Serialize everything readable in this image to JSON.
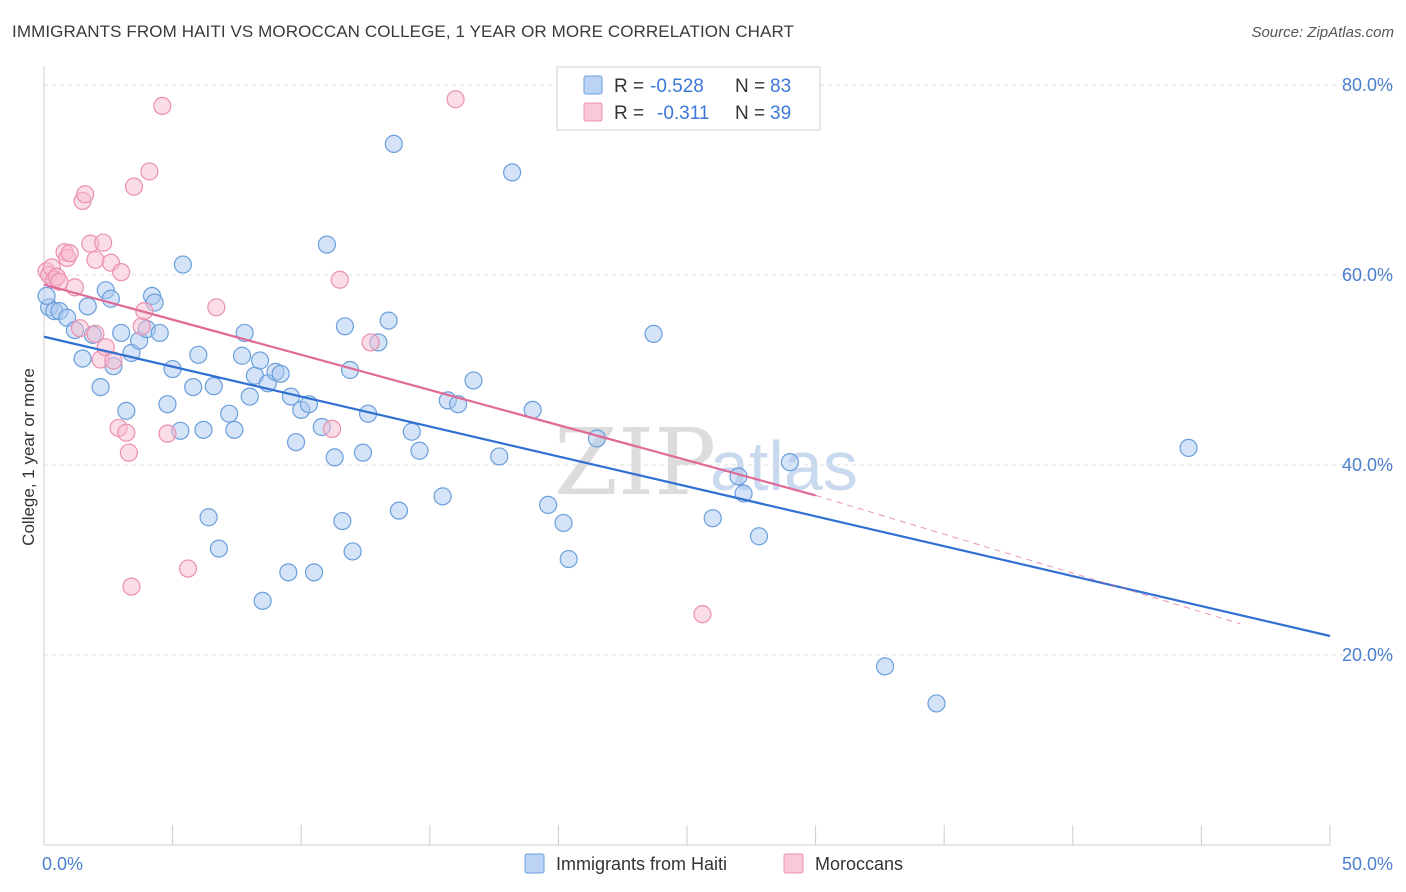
{
  "header": {
    "title": "IMMIGRANTS FROM HAITI VS MOROCCAN COLLEGE, 1 YEAR OR MORE CORRELATION CHART",
    "source": "Source: ZipAtlas.com"
  },
  "legend": {
    "rows": [
      {
        "r_label": "R =",
        "r_value": "-0.528",
        "n_label": "N =",
        "n_value": "83"
      },
      {
        "r_label": "R =",
        "r_value": "-0.311",
        "n_label": "N =",
        "n_value": "39"
      }
    ]
  },
  "watermark": {
    "zip": "ZIP",
    "atlas": "atlas"
  },
  "colors": {
    "haiti_fill": "#a9c8ef",
    "haiti_stroke": "#6a9fdc",
    "haiti_line": "#3070d0",
    "moroccan_fill": "#f7bcd0",
    "moroccan_stroke": "#eb8fb0",
    "moroccan_line": "#e06a96",
    "tick_label": "#4a7fcf",
    "grid": "#dddddd"
  },
  "chart_data": {
    "type": "scatter",
    "title": "IMMIGRANTS FROM HAITI VS MOROCCAN COLLEGE, 1 YEAR OR MORE CORRELATION CHART",
    "xlabel": "",
    "ylabel": "College, 1 year or more",
    "xlim": [
      0,
      50
    ],
    "ylim": [
      0,
      82
    ],
    "x_tick_labels": [
      "0.0%",
      "50.0%"
    ],
    "y_ticks": [
      20,
      40,
      60,
      80
    ],
    "y_tick_labels": [
      "20.0%",
      "40.0%",
      "60.0%",
      "80.0%"
    ],
    "grid": "horizontal dashed",
    "legend_position": "top-center",
    "series": [
      {
        "name": "Immigrants from Haiti",
        "points": [
          [
            0.2,
            56.6
          ],
          [
            0.4,
            56.2
          ],
          [
            0.6,
            56.2
          ],
          [
            0.9,
            55.5
          ],
          [
            1.2,
            54.2
          ],
          [
            1.5,
            51.2
          ],
          [
            1.7,
            56.7
          ],
          [
            1.9,
            53.7
          ],
          [
            2.2,
            48.2
          ],
          [
            2.4,
            58.4
          ],
          [
            2.6,
            57.5
          ],
          [
            2.7,
            50.4
          ],
          [
            3.0,
            53.9
          ],
          [
            3.2,
            45.7
          ],
          [
            3.4,
            51.8
          ],
          [
            3.7,
            53.1
          ],
          [
            4.0,
            54.3
          ],
          [
            4.2,
            57.8
          ],
          [
            4.3,
            57.1
          ],
          [
            4.5,
            53.9
          ],
          [
            4.8,
            46.4
          ],
          [
            5.0,
            50.1
          ],
          [
            5.3,
            43.6
          ],
          [
            5.4,
            61.1
          ],
          [
            5.8,
            48.2
          ],
          [
            6.0,
            51.6
          ],
          [
            6.2,
            43.7
          ],
          [
            6.4,
            34.5
          ],
          [
            6.6,
            48.3
          ],
          [
            6.8,
            31.2
          ],
          [
            7.2,
            45.4
          ],
          [
            7.4,
            43.7
          ],
          [
            7.7,
            51.5
          ],
          [
            7.8,
            53.9
          ],
          [
            8.0,
            47.2
          ],
          [
            8.2,
            49.4
          ],
          [
            8.4,
            51.0
          ],
          [
            8.5,
            25.7
          ],
          [
            8.7,
            48.6
          ],
          [
            9.0,
            49.8
          ],
          [
            9.2,
            49.6
          ],
          [
            9.5,
            28.7
          ],
          [
            9.6,
            47.2
          ],
          [
            9.8,
            42.4
          ],
          [
            10.0,
            45.8
          ],
          [
            10.3,
            46.4
          ],
          [
            10.5,
            28.7
          ],
          [
            10.8,
            44.0
          ],
          [
            11.0,
            63.2
          ],
          [
            11.3,
            40.8
          ],
          [
            11.6,
            34.1
          ],
          [
            11.7,
            54.6
          ],
          [
            11.9,
            50.0
          ],
          [
            12.0,
            30.9
          ],
          [
            12.4,
            41.3
          ],
          [
            12.6,
            45.4
          ],
          [
            13.0,
            52.9
          ],
          [
            13.4,
            55.2
          ],
          [
            13.6,
            73.8
          ],
          [
            13.8,
            35.2
          ],
          [
            14.3,
            43.5
          ],
          [
            14.6,
            41.5
          ],
          [
            15.5,
            36.7
          ],
          [
            15.7,
            46.8
          ],
          [
            16.1,
            46.4
          ],
          [
            16.7,
            48.9
          ],
          [
            17.7,
            40.9
          ],
          [
            18.2,
            70.8
          ],
          [
            19.0,
            45.8
          ],
          [
            19.6,
            35.8
          ],
          [
            20.2,
            33.9
          ],
          [
            20.4,
            30.1
          ],
          [
            21.5,
            42.8
          ],
          [
            23.7,
            53.8
          ],
          [
            26.0,
            34.4
          ],
          [
            27.0,
            38.8
          ],
          [
            27.2,
            37.0
          ],
          [
            27.8,
            32.5
          ],
          [
            29.0,
            40.3
          ],
          [
            32.7,
            18.8
          ],
          [
            34.7,
            14.9
          ],
          [
            44.5,
            41.8
          ],
          [
            0.1,
            57.8
          ]
        ],
        "trend": {
          "x": [
            0,
            50
          ],
          "y": [
            53.5,
            22.0
          ]
        }
      },
      {
        "name": "Moroccans",
        "points": [
          [
            0.1,
            60.4
          ],
          [
            0.2,
            60.0
          ],
          [
            0.3,
            60.8
          ],
          [
            0.4,
            59.5
          ],
          [
            0.5,
            59.8
          ],
          [
            0.8,
            62.4
          ],
          [
            0.9,
            61.8
          ],
          [
            1.0,
            62.3
          ],
          [
            1.2,
            58.7
          ],
          [
            1.4,
            54.4
          ],
          [
            1.5,
            67.8
          ],
          [
            1.6,
            68.5
          ],
          [
            1.8,
            63.3
          ],
          [
            2.0,
            61.6
          ],
          [
            2.0,
            53.8
          ],
          [
            2.2,
            51.1
          ],
          [
            2.3,
            63.4
          ],
          [
            2.4,
            52.4
          ],
          [
            2.6,
            61.3
          ],
          [
            2.7,
            51.0
          ],
          [
            2.9,
            43.9
          ],
          [
            3.0,
            60.3
          ],
          [
            3.2,
            43.4
          ],
          [
            3.3,
            41.3
          ],
          [
            3.4,
            27.2
          ],
          [
            3.5,
            69.3
          ],
          [
            3.8,
            54.6
          ],
          [
            3.9,
            56.2
          ],
          [
            4.1,
            70.9
          ],
          [
            4.6,
            77.8
          ],
          [
            4.8,
            43.3
          ],
          [
            5.6,
            29.1
          ],
          [
            6.7,
            56.6
          ],
          [
            11.2,
            43.8
          ],
          [
            11.5,
            59.5
          ],
          [
            12.7,
            52.9
          ],
          [
            16.0,
            78.5
          ],
          [
            25.6,
            24.3
          ],
          [
            0.6,
            59.3
          ]
        ],
        "trend": {
          "x": [
            0,
            30
          ],
          "y": [
            59.0,
            36.8
          ]
        },
        "trend_extension": {
          "x": [
            30,
            46.5
          ],
          "y": [
            36.8,
            23.3
          ]
        }
      }
    ]
  },
  "bottom_legend": {
    "items": [
      {
        "label": "Immigrants from Haiti"
      },
      {
        "label": "Moroccans"
      }
    ]
  }
}
